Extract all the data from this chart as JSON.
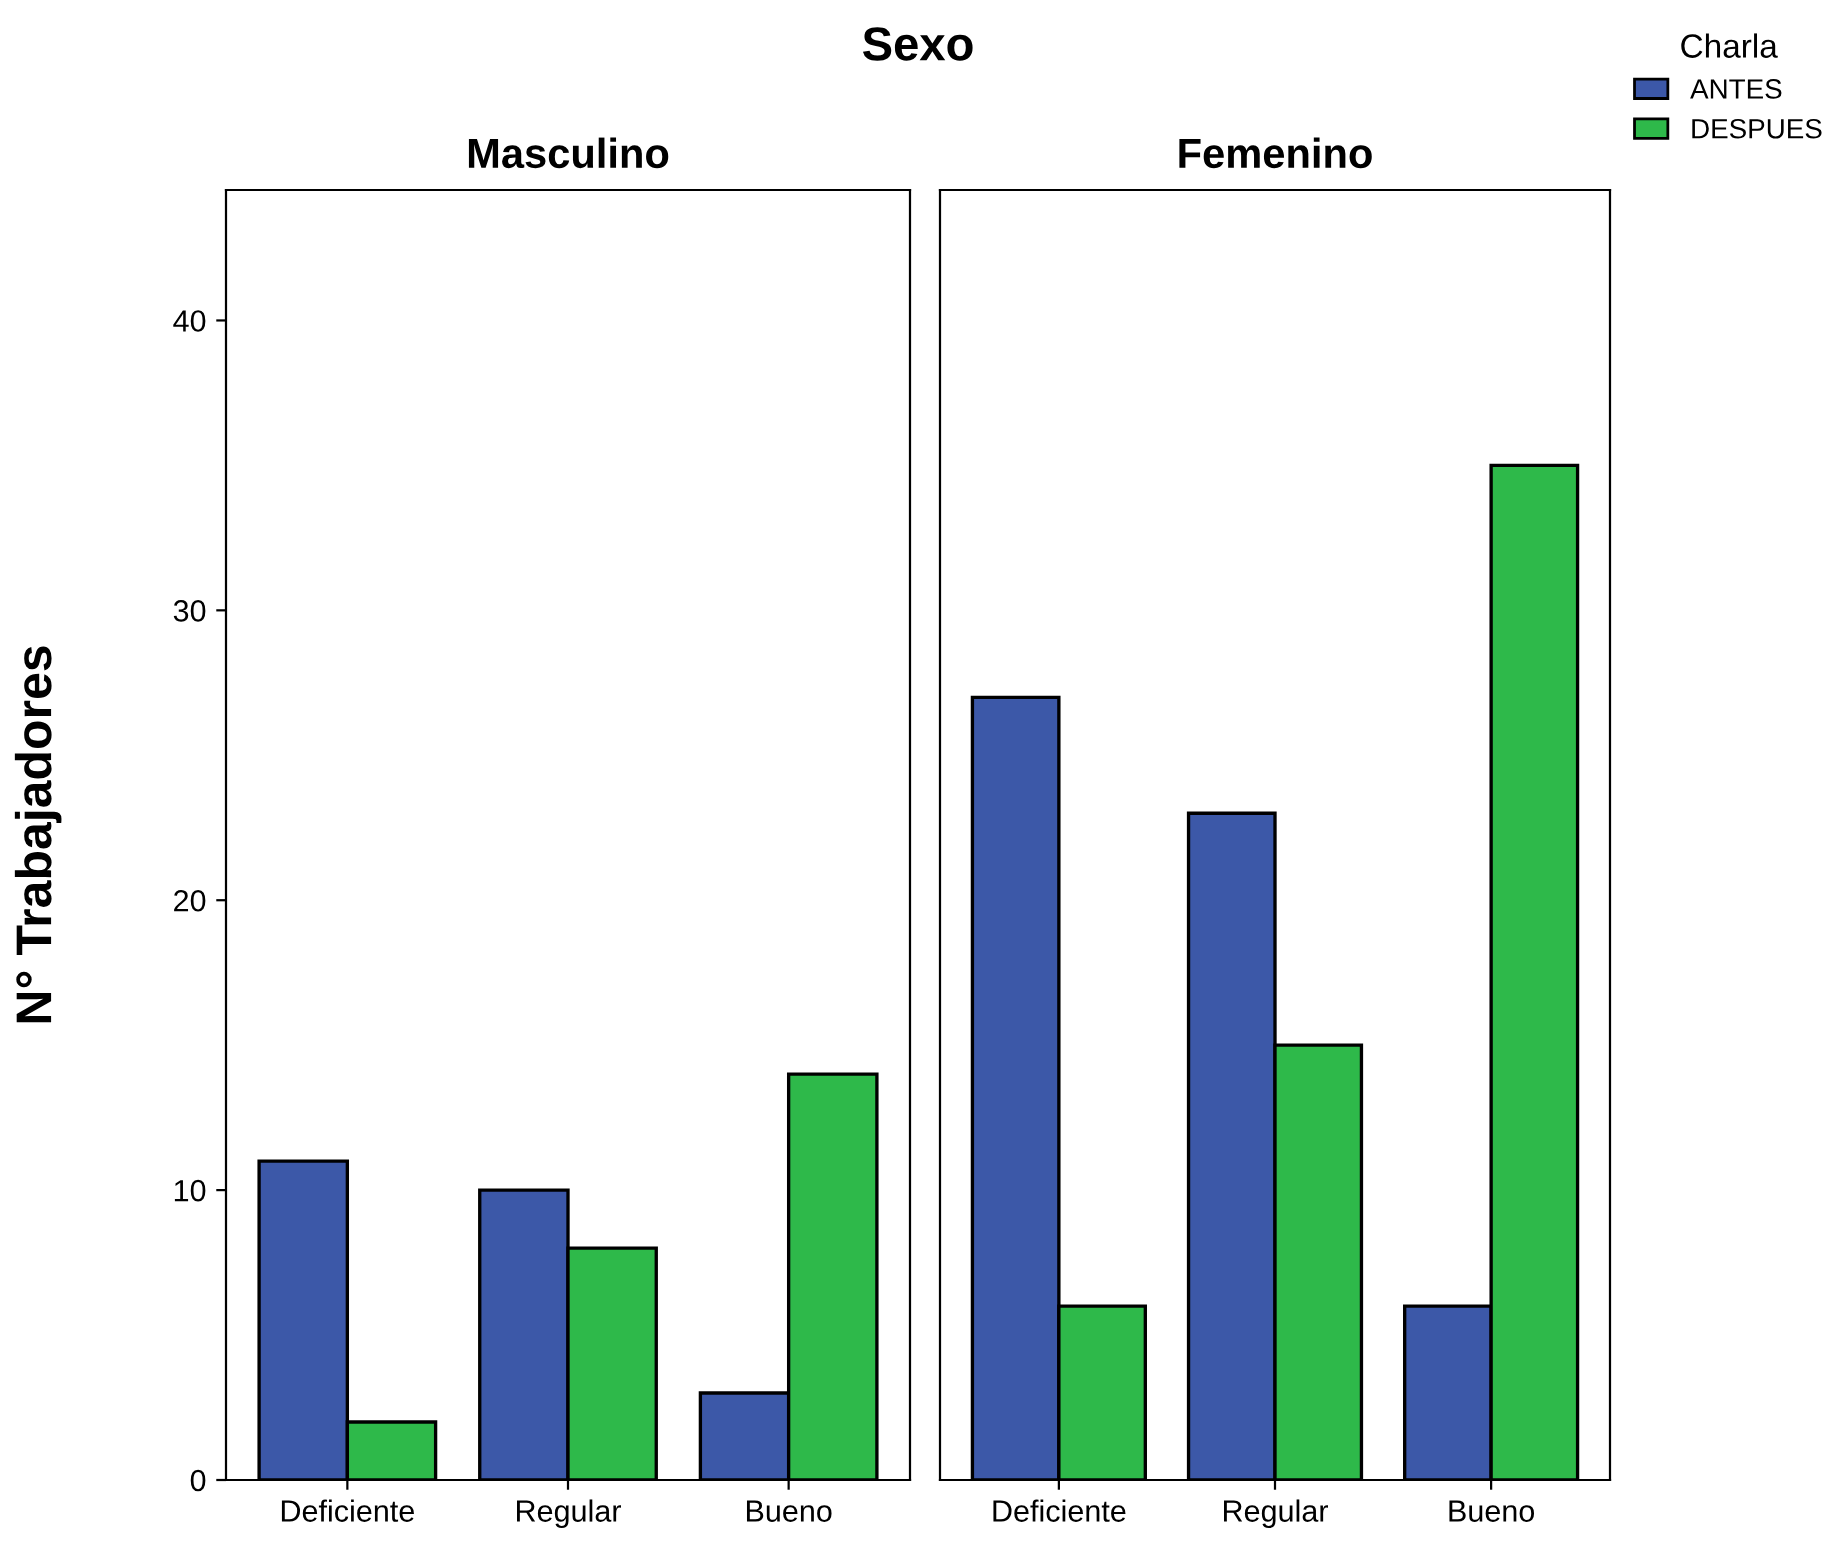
{
  "chart_data": [
    {
      "type": "bar",
      "title": "Masculino",
      "ylabel": "N° Trabajadores",
      "annotations": [
        "Sexo"
      ],
      "categories": [
        "Deficiente",
        "Regular",
        "Bueno"
      ],
      "series": [
        {
          "color": "#3c58a8",
          "values": [
            11,
            10,
            3
          ]
        },
        {
          "color": "#2eb94a",
          "values": [
            2,
            8,
            14
          ]
        }
      ],
      "ylim": [
        0,
        44.5
      ],
      "yticks": [
        0,
        10,
        20,
        30,
        40
      ],
      "grid": false
    },
    {
      "type": "bar",
      "title": "Femenino",
      "legend_title": "Charla",
      "legend": "top right",
      "tick_labels": "x",
      "categories": [
        "Deficiente",
        "Regular",
        "Bueno"
      ],
      "series": [
        {
          "name": "ANTES",
          "color": "#3c58a8",
          "values": [
            27,
            23,
            6
          ]
        },
        {
          "name": "DESPUES",
          "color": "#2eb94a",
          "values": [
            6,
            15,
            35
          ]
        }
      ],
      "ylim": [
        0,
        44.5
      ],
      "yticks": [
        0,
        10,
        20,
        30,
        40
      ],
      "grid": false
    }
  ]
}
